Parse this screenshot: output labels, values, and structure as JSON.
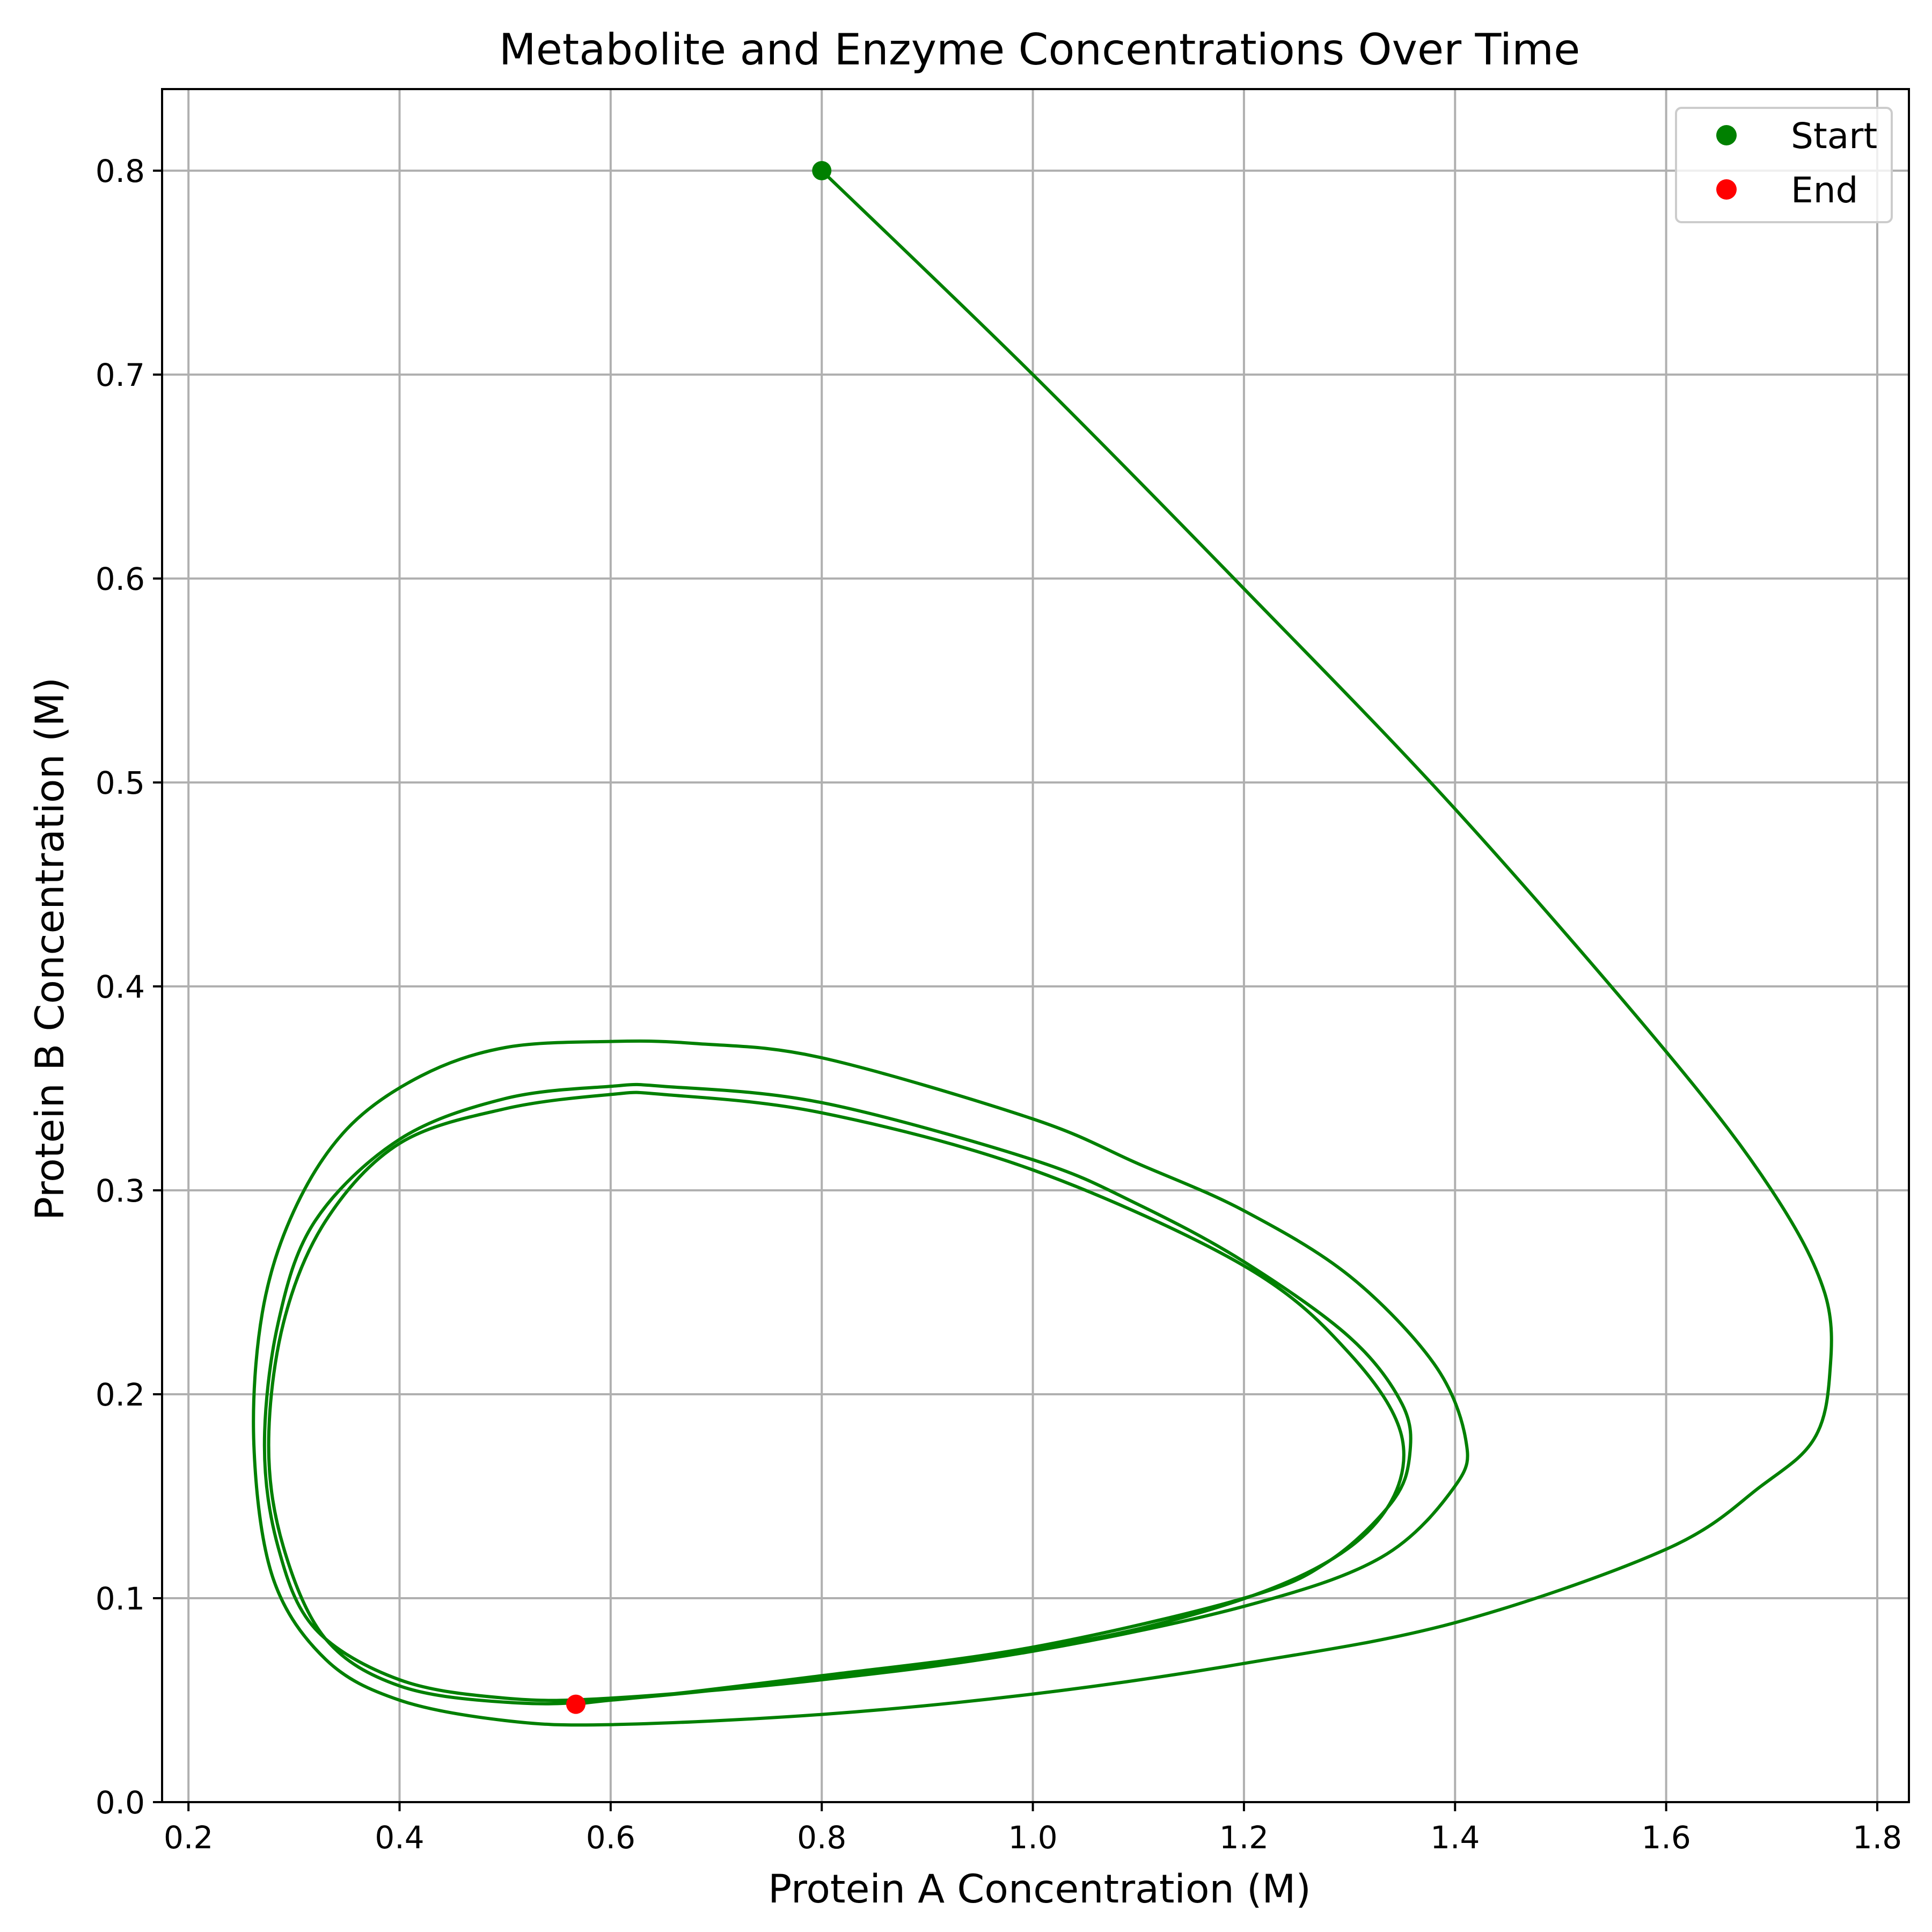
{
  "chart_data": {
    "type": "line",
    "title": "Metabolite and Enzyme Concentrations Over Time",
    "xlabel": "Protein A Concentration (M)",
    "ylabel": "Protein B Concentration (M)",
    "xlim": [
      0.175,
      1.83
    ],
    "ylim": [
      0.0,
      0.84
    ],
    "xticks": [
      0.2,
      0.4,
      0.6,
      0.8,
      1.0,
      1.2,
      1.4,
      1.6,
      1.8
    ],
    "xtick_labels": [
      "0.2",
      "0.4",
      "0.6",
      "0.8",
      "1.0",
      "1.2",
      "1.4",
      "1.6",
      "1.8"
    ],
    "yticks": [
      0.0,
      0.1,
      0.2,
      0.3,
      0.4,
      0.5,
      0.6,
      0.7,
      0.8
    ],
    "ytick_labels": [
      "0.0",
      "0.1",
      "0.2",
      "0.3",
      "0.4",
      "0.5",
      "0.6",
      "0.7",
      "0.8"
    ],
    "grid": true,
    "legend_position": "top-right",
    "legend": [
      {
        "label": "Start",
        "color": "#008000"
      },
      {
        "label": "End",
        "color": "#ff0000"
      }
    ],
    "trajectory_color": "#008000",
    "series": [
      {
        "x": [
          0.8,
          1.0,
          1.2,
          1.4,
          1.6,
          1.7,
          1.75,
          1.755,
          1.74,
          1.69,
          1.6,
          1.4,
          1.2,
          1.0,
          0.8,
          0.6,
          0.5,
          0.4,
          0.33,
          0.28,
          0.262,
          0.27,
          0.3,
          0.35,
          0.42,
          0.5,
          0.6,
          0.68,
          0.8,
          1.0,
          1.1,
          1.2,
          1.3,
          1.38,
          1.41,
          1.4,
          1.33,
          1.2,
          1.0,
          0.8,
          0.6,
          0.5,
          0.4,
          0.32,
          0.285,
          0.272,
          0.285,
          0.32,
          0.4,
          0.5,
          0.6,
          0.65,
          0.8,
          1.0,
          1.1,
          1.2,
          1.3,
          1.35,
          1.357,
          1.34,
          1.28,
          1.2,
          1.0,
          0.8,
          0.6,
          0.5,
          0.4,
          0.33,
          0.29,
          0.276,
          0.29,
          0.33,
          0.4,
          0.5,
          0.6,
          0.65,
          0.8,
          1.0,
          1.2,
          1.3,
          1.35,
          1.33,
          1.25,
          1.1,
          0.9,
          0.7,
          0.6,
          0.567
        ],
        "y": [
          0.8,
          0.7,
          0.595,
          0.487,
          0.368,
          0.3,
          0.25,
          0.21,
          0.178,
          0.155,
          0.124,
          0.088,
          0.068,
          0.053,
          0.043,
          0.038,
          0.04,
          0.05,
          0.07,
          0.11,
          0.175,
          0.24,
          0.29,
          0.33,
          0.356,
          0.37,
          0.373,
          0.372,
          0.365,
          0.335,
          0.313,
          0.29,
          0.258,
          0.215,
          0.178,
          0.155,
          0.12,
          0.096,
          0.074,
          0.06,
          0.051,
          0.051,
          0.06,
          0.085,
          0.125,
          0.175,
          0.235,
          0.285,
          0.325,
          0.345,
          0.351,
          0.351,
          0.343,
          0.315,
          0.293,
          0.265,
          0.228,
          0.195,
          0.17,
          0.147,
          0.118,
          0.1,
          0.076,
          0.062,
          0.05,
          0.049,
          0.057,
          0.08,
          0.125,
          0.175,
          0.235,
          0.285,
          0.323,
          0.34,
          0.347,
          0.347,
          0.338,
          0.31,
          0.263,
          0.22,
          0.178,
          0.14,
          0.11,
          0.085,
          0.067,
          0.055,
          0.05,
          0.048
        ]
      }
    ],
    "start_point": {
      "x": 0.8,
      "y": 0.8
    },
    "end_point": {
      "x": 0.567,
      "y": 0.048
    }
  }
}
